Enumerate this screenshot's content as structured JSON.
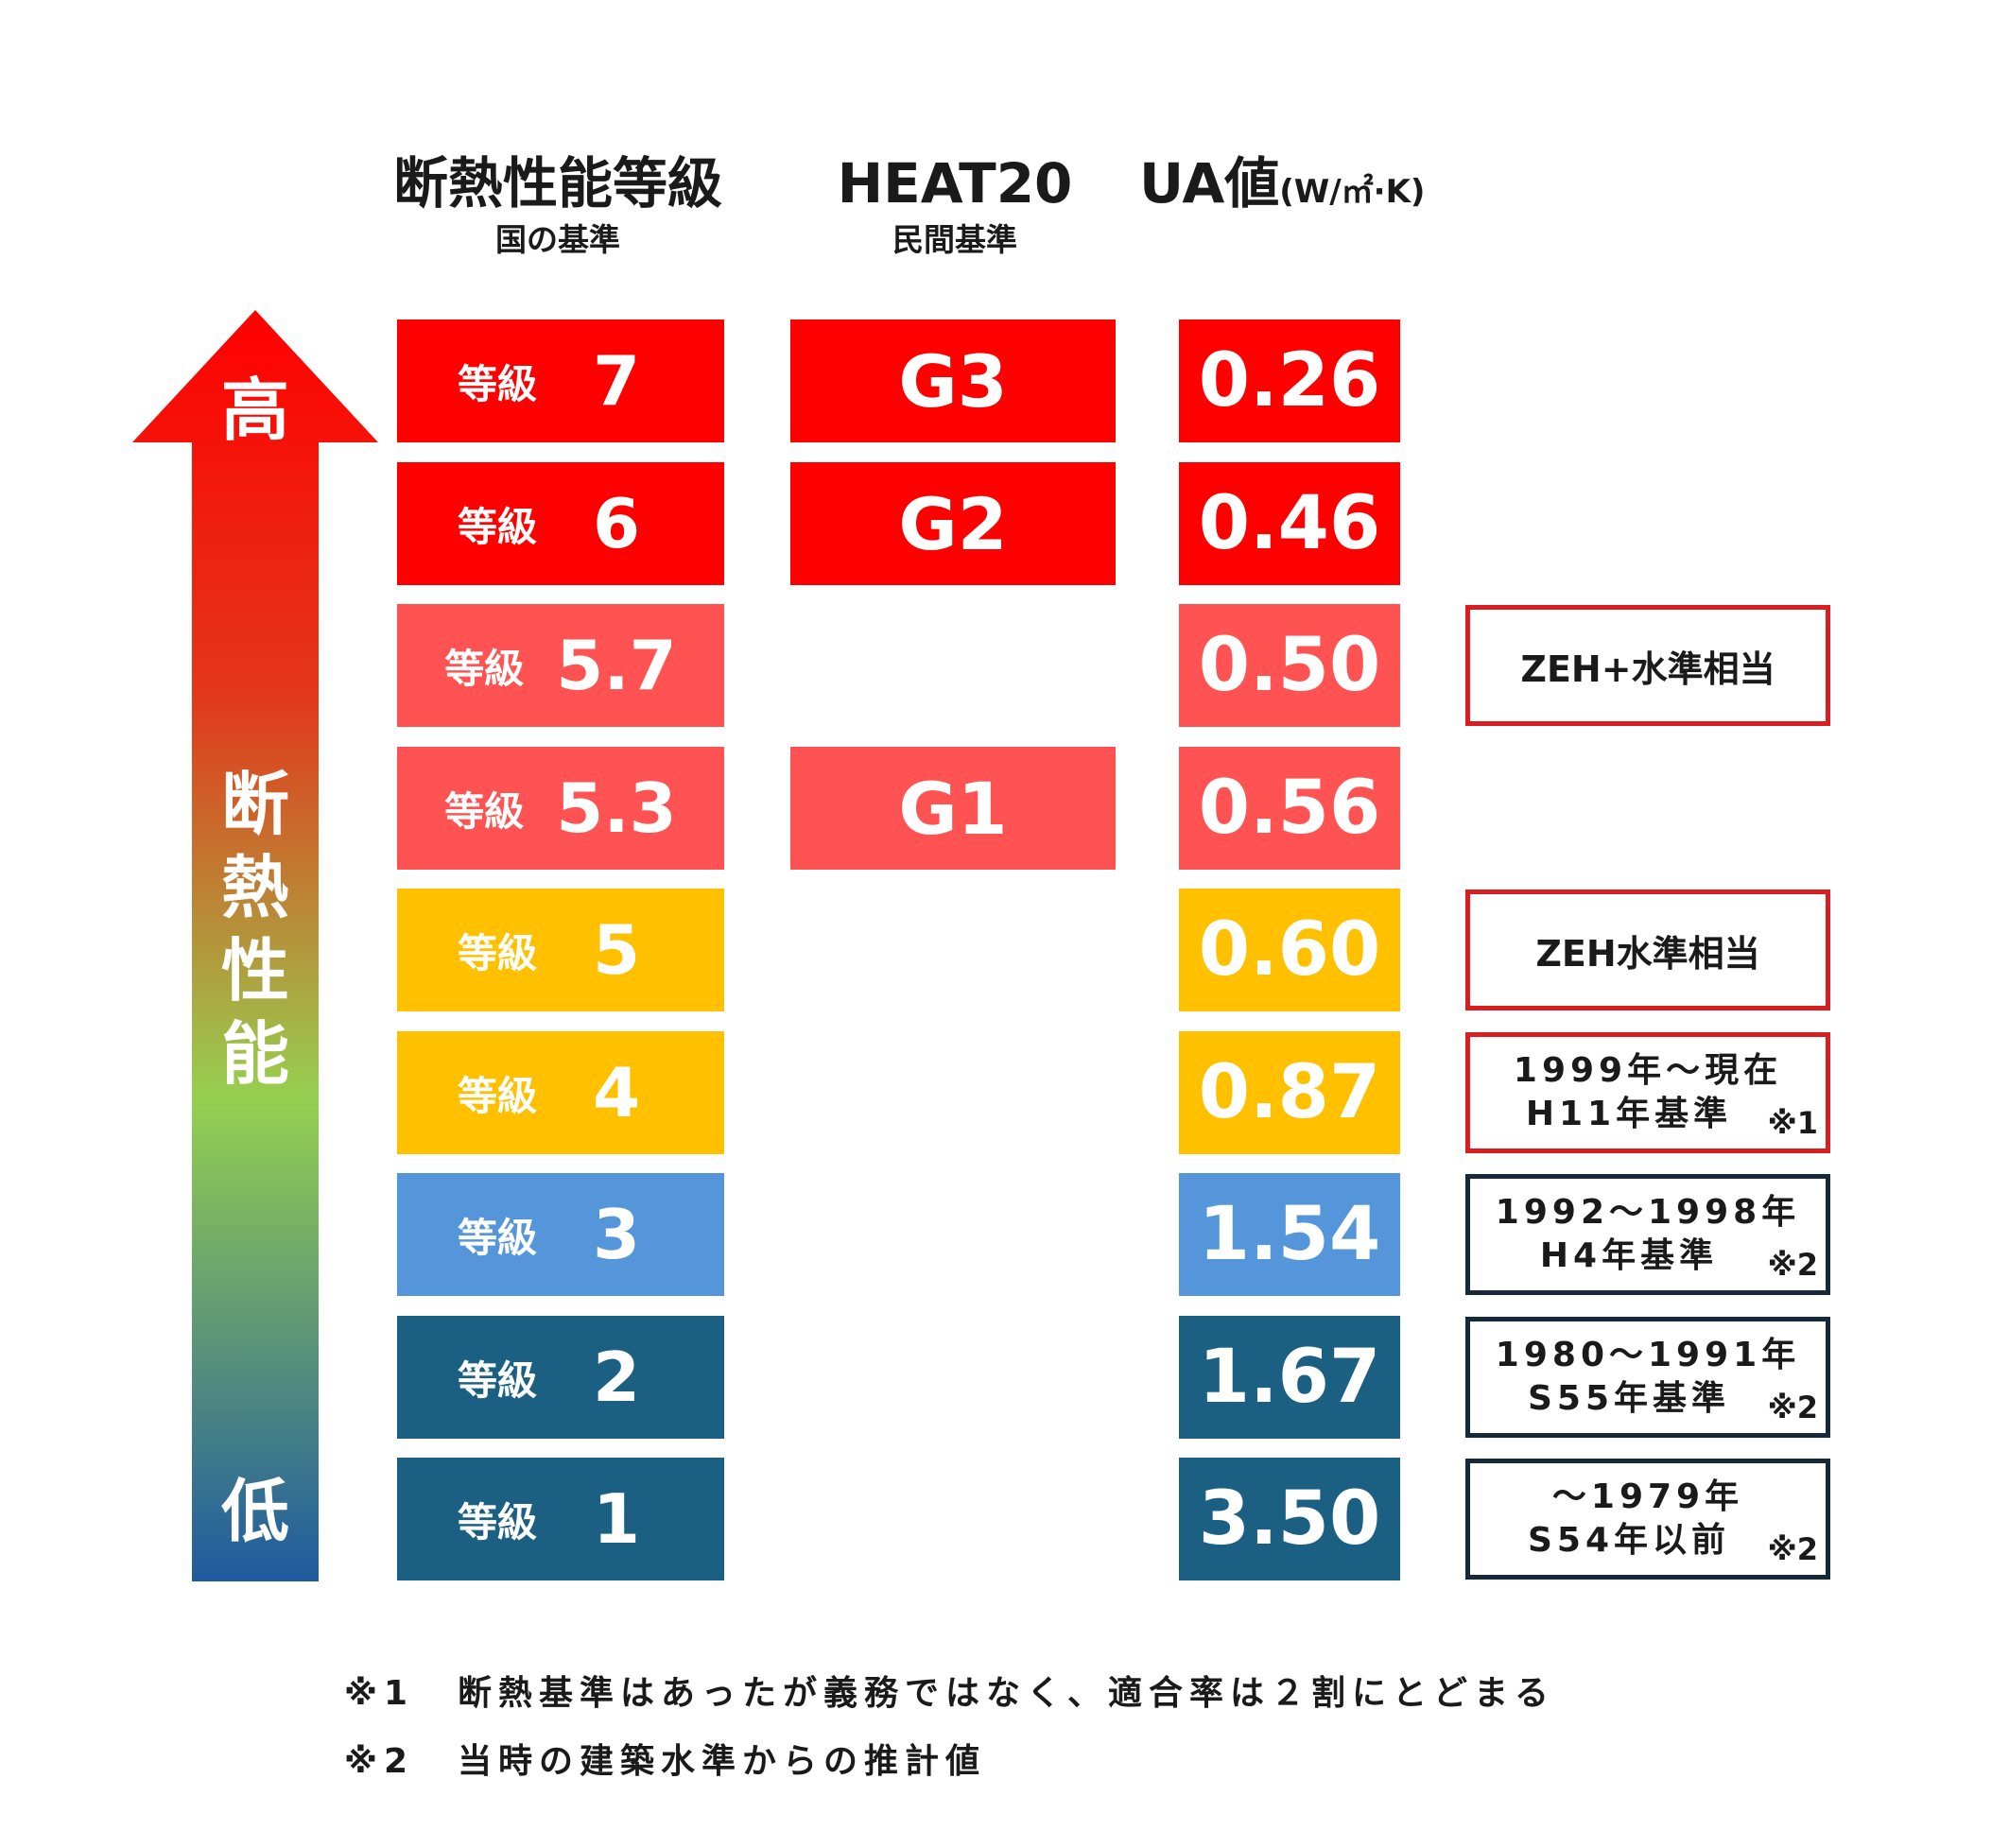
{
  "headers": {
    "grade": {
      "title": "断熱性能等級",
      "sub": "国の基準"
    },
    "heat20": {
      "title": "HEAT20",
      "sub": "民間基準"
    },
    "ua": {
      "title": "UA値",
      "unit": "(W/㎡·K)"
    }
  },
  "arrow": {
    "top_label": "高",
    "middle_label": [
      "断",
      "熱",
      "性",
      "能"
    ],
    "bottom_label": "低",
    "gradient_colors": [
      "#ff0000",
      "#e3361a",
      "#96d050",
      "#1f5aa0"
    ]
  },
  "rows": [
    {
      "grade_label": "等級",
      "grade": "7",
      "heat20": "G3",
      "ua": "0.26",
      "color": "#ff0000",
      "note": null
    },
    {
      "grade_label": "等級",
      "grade": "6",
      "heat20": "G2",
      "ua": "0.46",
      "color": "#ff0000",
      "note": null
    },
    {
      "grade_label": "等級",
      "grade": "5.7",
      "heat20": "",
      "ua": "0.50",
      "color": "#ff5252",
      "note": {
        "lines": [
          "ZEH+水準相当"
        ],
        "mark": "",
        "border": "red"
      }
    },
    {
      "grade_label": "等級",
      "grade": "5.3",
      "heat20": "G1",
      "ua": "0.56",
      "color": "#ff5252",
      "note": null
    },
    {
      "grade_label": "等級",
      "grade": "5",
      "heat20": "",
      "ua": "0.60",
      "color": "#ffc000",
      "note": {
        "lines": [
          "ZEH水準相当"
        ],
        "mark": "",
        "border": "red"
      }
    },
    {
      "grade_label": "等級",
      "grade": "4",
      "heat20": "",
      "ua": "0.87",
      "color": "#ffc000",
      "note": {
        "lines": [
          "1999年～現在",
          "H11年基準"
        ],
        "mark": "※1",
        "border": "red"
      }
    },
    {
      "grade_label": "等級",
      "grade": "3",
      "heat20": "",
      "ua": "1.54",
      "color": "#5596da",
      "note": {
        "lines": [
          "1992～1998年",
          "H4年基準"
        ],
        "mark": "※2",
        "border": "dark"
      }
    },
    {
      "grade_label": "等級",
      "grade": "2",
      "heat20": "",
      "ua": "1.67",
      "color": "#1b5f82",
      "note": {
        "lines": [
          "1980～1991年",
          "S55年基準"
        ],
        "mark": "※2",
        "border": "dark"
      }
    },
    {
      "grade_label": "等級",
      "grade": "1",
      "heat20": "",
      "ua": "3.50",
      "color": "#1b5f82",
      "note": {
        "lines": [
          "～1979年",
          "S54年以前"
        ],
        "mark": "※2",
        "border": "dark"
      }
    }
  ],
  "footnotes": [
    {
      "mark": "※1",
      "text": "断熱基準はあったが義務ではなく、適合率は２割にとどまる"
    },
    {
      "mark": "※2",
      "text": "当時の建築水準からの推計値"
    }
  ]
}
